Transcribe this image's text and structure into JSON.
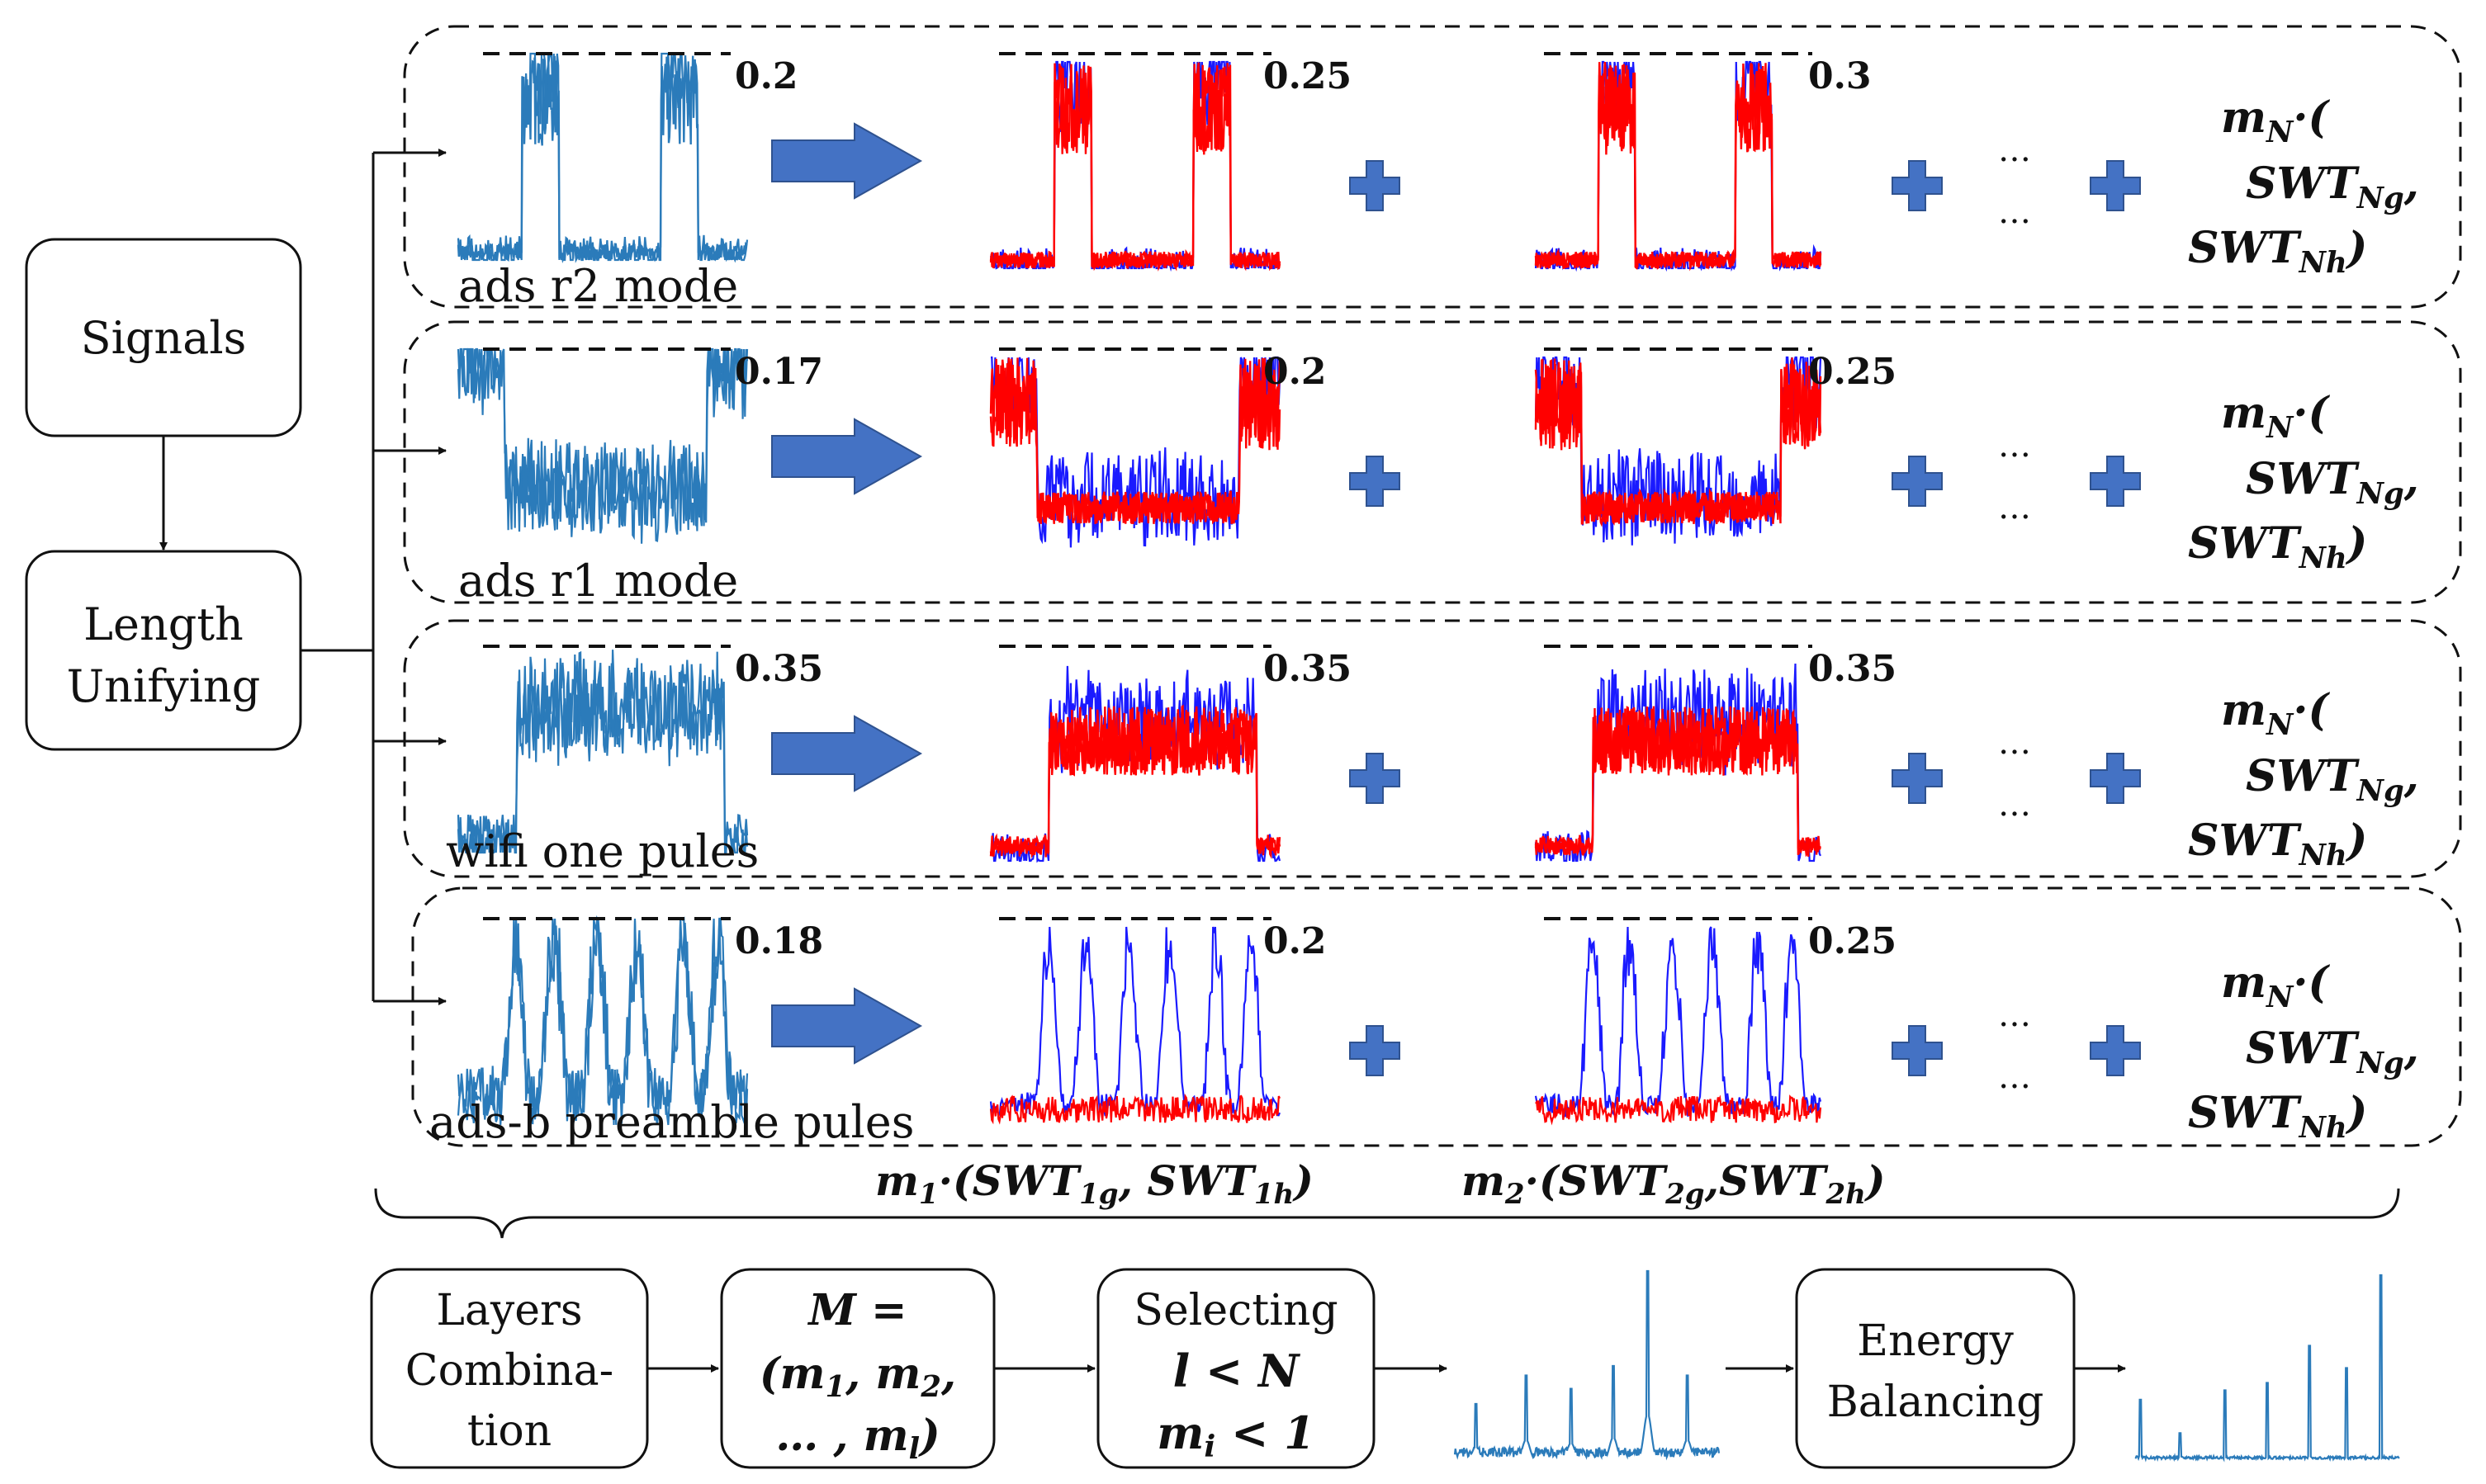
{
  "left_boxes": {
    "signals": "Signals",
    "length_unifying": [
      "Length",
      "Unifying"
    ]
  },
  "rows": [
    {
      "label": "ads r2 mode",
      "thresholds": [
        "0.2",
        "0.25",
        "0.3"
      ]
    },
    {
      "label": "ads r1 mode",
      "thresholds": [
        "0.17",
        "0.2",
        "0.25"
      ]
    },
    {
      "label": "wifi one pules",
      "thresholds": [
        "0.35",
        "0.35",
        "0.35"
      ]
    },
    {
      "label": "ads-b preamble pules",
      "thresholds": [
        "0.18",
        "0.2",
        "0.25"
      ]
    }
  ],
  "ellipsis": "…",
  "term_n": {
    "m": "m",
    "m_sub": "N",
    "open": "·(",
    "swt_g": "SWT",
    "swt_g_sub": "Ng",
    "comma": ",",
    "swt_h": "SWT",
    "swt_h_sub": "Nh",
    "close": ")"
  },
  "term_1": {
    "m": "m",
    "m_sub": "1",
    "mid": "·(SWT",
    "g_sub": "1g",
    "mid2": ", SWT",
    "h_sub": "1h",
    "close": ")"
  },
  "term_2": {
    "m": "m",
    "m_sub": "2",
    "mid": "·(SWT",
    "g_sub": "2g",
    "mid2": ",SWT",
    "h_sub": "2h",
    "close": ")"
  },
  "bottom": {
    "layers": [
      "Layers",
      "Combina-",
      "tion"
    ],
    "M_line1": "M =",
    "M_line2": {
      "open": "(m",
      "s1": "1",
      "c1": ", m",
      "s2": "2",
      "c2": ","
    },
    "M_line3": {
      "open": "… , m",
      "sl": "l",
      "close": ")"
    },
    "selecting": "Selecting",
    "sel_l": "l < N",
    "sel_m": {
      "m": "m",
      "sub": "i",
      "rest": " < 1"
    },
    "energy": [
      "Energy",
      "Balancing"
    ]
  },
  "colors": {
    "blue_signal": "#2b7bba",
    "red_overlay": "#ff0000",
    "blue_overlay": "#1a1aff",
    "arrow_fill": "#4472c4",
    "plus": "#4472c4"
  }
}
